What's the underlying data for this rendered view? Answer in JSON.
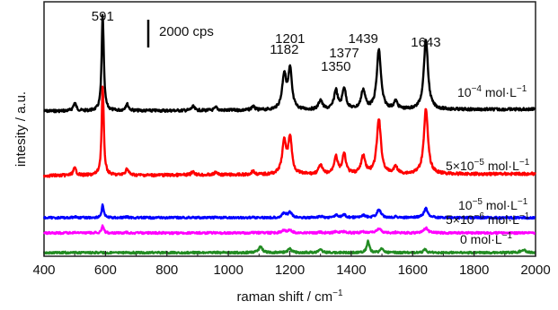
{
  "chart_data": {
    "type": "line",
    "xlabel": "raman shift / cm",
    "xlabel_superscript": "−1",
    "ylabel": "intesity / a.u.",
    "xlim": [
      400,
      2000
    ],
    "x_ticks": [
      400,
      600,
      800,
      1000,
      1200,
      1400,
      1600,
      1800,
      2000
    ],
    "scale_bar": {
      "label": "2000 cps",
      "value": 2000
    },
    "peak_labels": [
      "591",
      "1182",
      "1201",
      "1350",
      "1377",
      "1439",
      "1643"
    ],
    "peaks": [
      {
        "x": 500,
        "height": 0.08,
        "width": 6
      },
      {
        "x": 591,
        "height": 1.0,
        "width": 4
      },
      {
        "x": 670,
        "height": 0.07,
        "width": 6
      },
      {
        "x": 885,
        "height": 0.04,
        "width": 6
      },
      {
        "x": 960,
        "height": 0.03,
        "width": 6
      },
      {
        "x": 1080,
        "height": 0.04,
        "width": 6
      },
      {
        "x": 1182,
        "height": 0.36,
        "width": 8
      },
      {
        "x": 1201,
        "height": 0.4,
        "width": 7
      },
      {
        "x": 1300,
        "height": 0.1,
        "width": 7
      },
      {
        "x": 1350,
        "height": 0.2,
        "width": 7
      },
      {
        "x": 1377,
        "height": 0.22,
        "width": 7
      },
      {
        "x": 1439,
        "height": 0.2,
        "width": 8
      },
      {
        "x": 1490,
        "height": 0.62,
        "width": 8
      },
      {
        "x": 1545,
        "height": 0.08,
        "width": 7
      },
      {
        "x": 1643,
        "height": 0.73,
        "width": 8
      }
    ],
    "series": [
      {
        "name": "10",
        "name_superscript": "−4",
        "unit": " mol·L",
        "unit_superscript": "−1",
        "color": "#000000",
        "scale": 1.0
      },
      {
        "name": "5×10",
        "name_superscript": "−5",
        "unit": " mol·L",
        "unit_superscript": "−1",
        "color": "#ff0000",
        "scale": 0.92
      },
      {
        "name": "10",
        "name_superscript": "−5",
        "unit": " mol·L",
        "unit_superscript": "−1",
        "color": "#0000ff",
        "scale": 0.13
      },
      {
        "name": "5×10",
        "name_superscript": "−6",
        "unit": " mol·L",
        "unit_superscript": "−1",
        "color": "#ff00ff",
        "scale": 0.07
      },
      {
        "name": "0",
        "name_superscript": "",
        "unit": " mol·L",
        "unit_superscript": "−1",
        "color": "#228b22",
        "scale": 0.0
      }
    ],
    "blank_peaks": [
      {
        "x": 1105,
        "height": 0.06,
        "width": 7
      },
      {
        "x": 1200,
        "height": 0.04,
        "width": 7
      },
      {
        "x": 1300,
        "height": 0.03,
        "width": 7
      },
      {
        "x": 1455,
        "height": 0.12,
        "width": 5
      },
      {
        "x": 1500,
        "height": 0.04,
        "width": 6
      },
      {
        "x": 1640,
        "height": 0.03,
        "width": 6
      },
      {
        "x": 1960,
        "height": 0.03,
        "width": 10
      }
    ]
  }
}
